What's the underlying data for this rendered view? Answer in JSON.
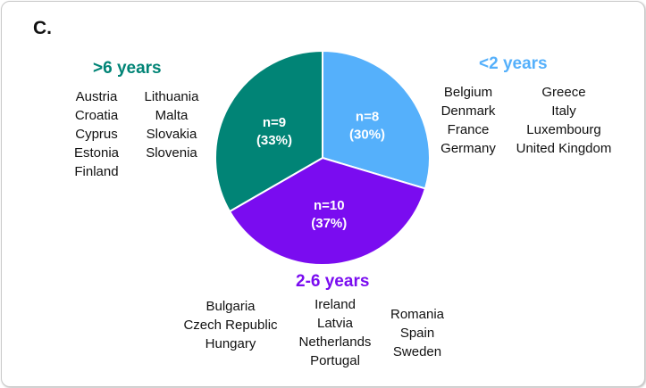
{
  "panel_label": "C.",
  "colors": {
    "lt2": "#55b0fb",
    "between": "#7a0cf0",
    "gt6": "#018476",
    "slice_text": "#ffffff"
  },
  "chart_data": {
    "type": "pie",
    "slices": [
      {
        "name": "<2 years",
        "n_label": "n=8",
        "pct_label": "(30%)",
        "value": 8,
        "color": "#55b0fb"
      },
      {
        "name": "2-6 years",
        "n_label": "n=10",
        "pct_label": "(37%)",
        "value": 10,
        "color": "#7a0cf0"
      },
      {
        "name": ">6 years",
        "n_label": "n=9",
        "pct_label": "(33%)",
        "value": 9,
        "color": "#018476"
      }
    ]
  },
  "groups": {
    "gt6": {
      "title": ">6 years",
      "col1": [
        "Austria",
        "Croatia",
        "Cyprus",
        "Estonia",
        "Finland"
      ],
      "col2": [
        "Lithuania",
        "Malta",
        "Slovakia",
        "Slovenia"
      ]
    },
    "lt2": {
      "title": "<2 years",
      "col1": [
        "Belgium",
        "Denmark",
        "France",
        "Germany"
      ],
      "col2": [
        "Greece",
        "Italy",
        "Luxembourg",
        "United Kingdom"
      ]
    },
    "between": {
      "title": "2-6 years",
      "col1": [
        "Bulgaria",
        "Czech Republic",
        "Hungary"
      ],
      "col2": [
        "Ireland",
        "Latvia",
        "Netherlands",
        "Portugal"
      ],
      "col3": [
        "Romania",
        "Spain",
        "Sweden"
      ]
    }
  }
}
